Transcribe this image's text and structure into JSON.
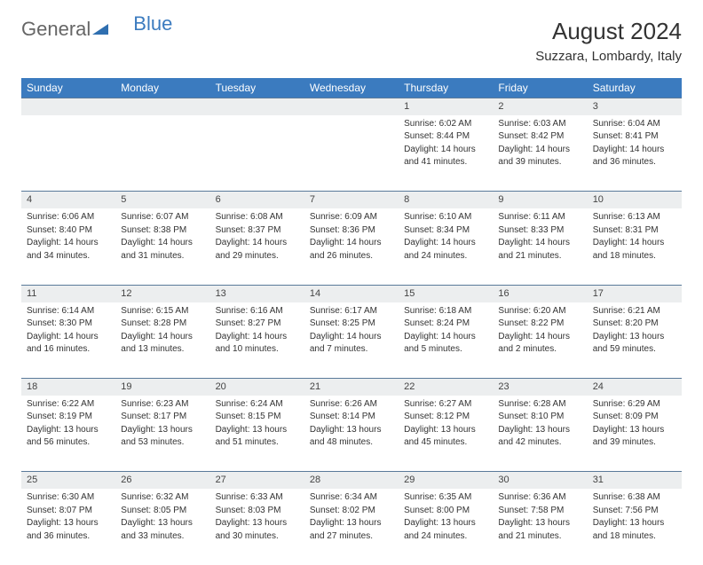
{
  "brand": {
    "part1": "General",
    "part2": "Blue"
  },
  "title": "August 2024",
  "location": "Suzzara, Lombardy, Italy",
  "colors": {
    "header_bg": "#3b7bbf",
    "daynum_bg": "#eceeef",
    "row_border": "#5a7a9a",
    "text": "#333333",
    "background": "#ffffff"
  },
  "weekdays": [
    "Sunday",
    "Monday",
    "Tuesday",
    "Wednesday",
    "Thursday",
    "Friday",
    "Saturday"
  ],
  "weeks": [
    [
      null,
      null,
      null,
      null,
      {
        "n": "1",
        "sr": "Sunrise: 6:02 AM",
        "ss": "Sunset: 8:44 PM",
        "d1": "Daylight: 14 hours",
        "d2": "and 41 minutes."
      },
      {
        "n": "2",
        "sr": "Sunrise: 6:03 AM",
        "ss": "Sunset: 8:42 PM",
        "d1": "Daylight: 14 hours",
        "d2": "and 39 minutes."
      },
      {
        "n": "3",
        "sr": "Sunrise: 6:04 AM",
        "ss": "Sunset: 8:41 PM",
        "d1": "Daylight: 14 hours",
        "d2": "and 36 minutes."
      }
    ],
    [
      {
        "n": "4",
        "sr": "Sunrise: 6:06 AM",
        "ss": "Sunset: 8:40 PM",
        "d1": "Daylight: 14 hours",
        "d2": "and 34 minutes."
      },
      {
        "n": "5",
        "sr": "Sunrise: 6:07 AM",
        "ss": "Sunset: 8:38 PM",
        "d1": "Daylight: 14 hours",
        "d2": "and 31 minutes."
      },
      {
        "n": "6",
        "sr": "Sunrise: 6:08 AM",
        "ss": "Sunset: 8:37 PM",
        "d1": "Daylight: 14 hours",
        "d2": "and 29 minutes."
      },
      {
        "n": "7",
        "sr": "Sunrise: 6:09 AM",
        "ss": "Sunset: 8:36 PM",
        "d1": "Daylight: 14 hours",
        "d2": "and 26 minutes."
      },
      {
        "n": "8",
        "sr": "Sunrise: 6:10 AM",
        "ss": "Sunset: 8:34 PM",
        "d1": "Daylight: 14 hours",
        "d2": "and 24 minutes."
      },
      {
        "n": "9",
        "sr": "Sunrise: 6:11 AM",
        "ss": "Sunset: 8:33 PM",
        "d1": "Daylight: 14 hours",
        "d2": "and 21 minutes."
      },
      {
        "n": "10",
        "sr": "Sunrise: 6:13 AM",
        "ss": "Sunset: 8:31 PM",
        "d1": "Daylight: 14 hours",
        "d2": "and 18 minutes."
      }
    ],
    [
      {
        "n": "11",
        "sr": "Sunrise: 6:14 AM",
        "ss": "Sunset: 8:30 PM",
        "d1": "Daylight: 14 hours",
        "d2": "and 16 minutes."
      },
      {
        "n": "12",
        "sr": "Sunrise: 6:15 AM",
        "ss": "Sunset: 8:28 PM",
        "d1": "Daylight: 14 hours",
        "d2": "and 13 minutes."
      },
      {
        "n": "13",
        "sr": "Sunrise: 6:16 AM",
        "ss": "Sunset: 8:27 PM",
        "d1": "Daylight: 14 hours",
        "d2": "and 10 minutes."
      },
      {
        "n": "14",
        "sr": "Sunrise: 6:17 AM",
        "ss": "Sunset: 8:25 PM",
        "d1": "Daylight: 14 hours",
        "d2": "and 7 minutes."
      },
      {
        "n": "15",
        "sr": "Sunrise: 6:18 AM",
        "ss": "Sunset: 8:24 PM",
        "d1": "Daylight: 14 hours",
        "d2": "and 5 minutes."
      },
      {
        "n": "16",
        "sr": "Sunrise: 6:20 AM",
        "ss": "Sunset: 8:22 PM",
        "d1": "Daylight: 14 hours",
        "d2": "and 2 minutes."
      },
      {
        "n": "17",
        "sr": "Sunrise: 6:21 AM",
        "ss": "Sunset: 8:20 PM",
        "d1": "Daylight: 13 hours",
        "d2": "and 59 minutes."
      }
    ],
    [
      {
        "n": "18",
        "sr": "Sunrise: 6:22 AM",
        "ss": "Sunset: 8:19 PM",
        "d1": "Daylight: 13 hours",
        "d2": "and 56 minutes."
      },
      {
        "n": "19",
        "sr": "Sunrise: 6:23 AM",
        "ss": "Sunset: 8:17 PM",
        "d1": "Daylight: 13 hours",
        "d2": "and 53 minutes."
      },
      {
        "n": "20",
        "sr": "Sunrise: 6:24 AM",
        "ss": "Sunset: 8:15 PM",
        "d1": "Daylight: 13 hours",
        "d2": "and 51 minutes."
      },
      {
        "n": "21",
        "sr": "Sunrise: 6:26 AM",
        "ss": "Sunset: 8:14 PM",
        "d1": "Daylight: 13 hours",
        "d2": "and 48 minutes."
      },
      {
        "n": "22",
        "sr": "Sunrise: 6:27 AM",
        "ss": "Sunset: 8:12 PM",
        "d1": "Daylight: 13 hours",
        "d2": "and 45 minutes."
      },
      {
        "n": "23",
        "sr": "Sunrise: 6:28 AM",
        "ss": "Sunset: 8:10 PM",
        "d1": "Daylight: 13 hours",
        "d2": "and 42 minutes."
      },
      {
        "n": "24",
        "sr": "Sunrise: 6:29 AM",
        "ss": "Sunset: 8:09 PM",
        "d1": "Daylight: 13 hours",
        "d2": "and 39 minutes."
      }
    ],
    [
      {
        "n": "25",
        "sr": "Sunrise: 6:30 AM",
        "ss": "Sunset: 8:07 PM",
        "d1": "Daylight: 13 hours",
        "d2": "and 36 minutes."
      },
      {
        "n": "26",
        "sr": "Sunrise: 6:32 AM",
        "ss": "Sunset: 8:05 PM",
        "d1": "Daylight: 13 hours",
        "d2": "and 33 minutes."
      },
      {
        "n": "27",
        "sr": "Sunrise: 6:33 AM",
        "ss": "Sunset: 8:03 PM",
        "d1": "Daylight: 13 hours",
        "d2": "and 30 minutes."
      },
      {
        "n": "28",
        "sr": "Sunrise: 6:34 AM",
        "ss": "Sunset: 8:02 PM",
        "d1": "Daylight: 13 hours",
        "d2": "and 27 minutes."
      },
      {
        "n": "29",
        "sr": "Sunrise: 6:35 AM",
        "ss": "Sunset: 8:00 PM",
        "d1": "Daylight: 13 hours",
        "d2": "and 24 minutes."
      },
      {
        "n": "30",
        "sr": "Sunrise: 6:36 AM",
        "ss": "Sunset: 7:58 PM",
        "d1": "Daylight: 13 hours",
        "d2": "and 21 minutes."
      },
      {
        "n": "31",
        "sr": "Sunrise: 6:38 AM",
        "ss": "Sunset: 7:56 PM",
        "d1": "Daylight: 13 hours",
        "d2": "and 18 minutes."
      }
    ]
  ]
}
